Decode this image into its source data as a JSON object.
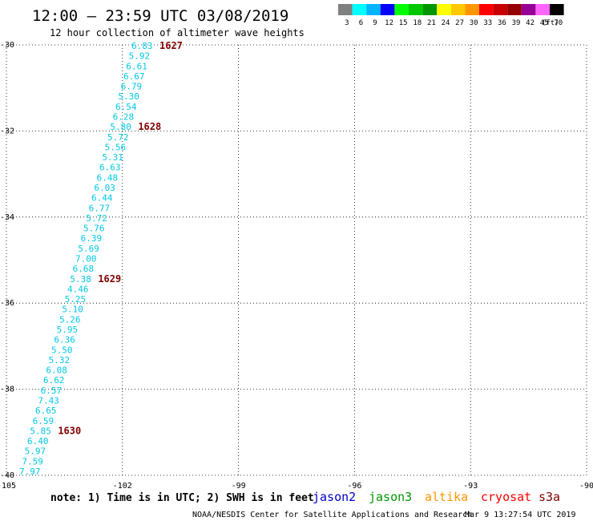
{
  "header": {
    "title": "12:00 — 23:59 UTC 03/08/2019",
    "subtitle": "12 hour collection of altimeter wave heights"
  },
  "legend": {
    "labels": [
      "3",
      "6",
      "9",
      "12",
      "15",
      "18",
      "21",
      "24",
      "27",
      "30",
      "33",
      "36",
      "39",
      "42",
      "45",
      "70"
    ],
    "unit": "(ft)",
    "colors": [
      "#808080",
      "#00ffff",
      "#00b4ff",
      "#0000ff",
      "#00ff00",
      "#00c800",
      "#009600",
      "#ffff00",
      "#ffc800",
      "#ff9600",
      "#ff0000",
      "#c80000",
      "#960000",
      "#960096",
      "#ff64ff",
      "#000000"
    ]
  },
  "map": {
    "lon_range": [
      -105,
      -90
    ],
    "lat_range": [
      -40,
      -30
    ],
    "x_ticks": [
      -105,
      -102,
      -99,
      -96,
      -93,
      -90
    ],
    "y_ticks": [
      -30,
      -32,
      -34,
      -36,
      -38,
      -40
    ],
    "x_tick_labels": [
      "-105",
      "-102",
      "-99",
      "-96",
      "-93",
      "-90"
    ],
    "y_tick_labels": [
      "-30",
      "-32",
      "-34",
      "-36",
      "-38",
      "-40"
    ]
  },
  "track": {
    "color": "#00c8e6",
    "values": [
      "6.83",
      "5.92",
      "6.61",
      "6.67",
      "6.79",
      "5.30",
      "6.54",
      "6.28",
      "5.80",
      "5.72",
      "5.56",
      "5.31",
      "6.63",
      "6.48",
      "6.03",
      "6.44",
      "6.77",
      "5.72",
      "5.76",
      "6.39",
      "5.69",
      "7.00",
      "6.68",
      "5.38",
      "4.46",
      "5.25",
      "5.10",
      "5.26",
      "5.95",
      "6.36",
      "5.50",
      "5.32",
      "6.08",
      "6.62",
      "6.57",
      "7.43",
      "6.65",
      "6.59",
      "5.85",
      "6.40",
      "5.97",
      "7.59",
      "7.97"
    ],
    "times": [
      {
        "label": "1627",
        "index": 0
      },
      {
        "label": "1628",
        "index": 8
      },
      {
        "label": "1629",
        "index": 23
      },
      {
        "label": "1630",
        "index": 38
      }
    ]
  },
  "note": "note: 1) Time is in UTC; 2) SWH is in feet",
  "satellites": [
    {
      "name": "jason2",
      "color": "#0000c8"
    },
    {
      "name": "jason3",
      "color": "#009600"
    },
    {
      "name": "altika",
      "color": "#ff9600"
    },
    {
      "name": "cryosat",
      "color": "#ff0000"
    },
    {
      "name": "s3a",
      "color": "#800000"
    }
  ],
  "footer": {
    "credit": "NOAA/NESDIS Center for Satellite Applications and Research",
    "timestamp": "Mar  9 13:27:54 UTC 2019"
  }
}
